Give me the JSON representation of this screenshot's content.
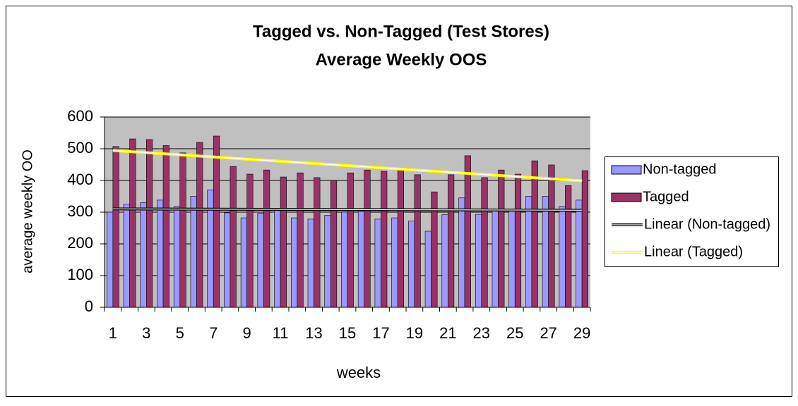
{
  "chart_data": {
    "type": "bar",
    "title": "Tagged vs. Non-Tagged  (Test Stores)",
    "subtitle": "Average Weekly OOS",
    "x_label": "weeks",
    "y_label": "average weekly OO",
    "categories": [
      "1",
      null,
      "3",
      null,
      "5",
      null,
      "7",
      null,
      "9",
      null,
      "11",
      null,
      "13",
      null,
      "15",
      null,
      "17",
      null,
      "19",
      null,
      "21",
      null,
      "23",
      null,
      "25",
      null,
      "27",
      null,
      "29"
    ],
    "series": [
      {
        "name": "Non-tagged",
        "color": "#9999ff",
        "values": [
          300,
          325,
          330,
          338,
          318,
          350,
          370,
          298,
          282,
          297,
          305,
          282,
          278,
          290,
          300,
          302,
          278,
          282,
          272,
          240,
          292,
          345,
          293,
          305,
          310,
          350,
          350,
          318,
          338
        ]
      },
      {
        "name": "Tagged",
        "color": "#993366",
        "values": [
          507,
          531,
          529,
          510,
          487,
          520,
          540,
          444,
          420,
          433,
          411,
          424,
          409,
          400,
          424,
          433,
          429,
          436,
          418,
          364,
          418,
          478,
          409,
          433,
          420,
          462,
          449,
          384,
          431
        ]
      }
    ],
    "trendlines": [
      {
        "name": "Linear (Non-tagged)",
        "color": "#000000"
      },
      {
        "name": "Linear (Tagged)",
        "color": "#ffff00"
      }
    ],
    "ylim": [
      0,
      600
    ],
    "yticks": [
      0,
      100,
      200,
      300,
      400,
      500,
      600
    ],
    "grid": true,
    "plot_background": "#c0c0c0",
    "legend": "right"
  }
}
